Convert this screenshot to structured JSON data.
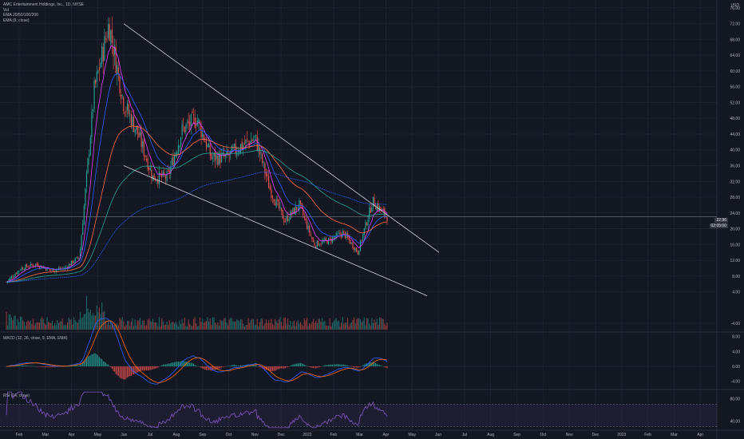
{
  "header": {
    "title": "AMC Entertainment Holdings, Inc., 1D, NYSE",
    "vol_label": "Vol",
    "ema_multi_label": "EMA 20/50/100/200",
    "ema_single_label": "EMA (9, close)",
    "currency": "USD"
  },
  "panes": {
    "macd_label": "MACD (12, 26, close, 9, EMA, EMA)",
    "rsi_label": "RSI (14, close)"
  },
  "price_tags": {
    "last": "22.96",
    "countdown": "02:05:00"
  },
  "chart_data": {
    "type": "candlestick",
    "title": "AMC Entertainment Holdings, Inc., 1D, NYSE",
    "x_ticks": [
      "Feb",
      "Mar",
      "Apr",
      "May",
      "Jun",
      "Jul",
      "Aug",
      "Sep",
      "Oct",
      "Nov",
      "Dec",
      "2022",
      "Feb",
      "Mar",
      "Apr",
      "May",
      "Jun",
      "Jul",
      "Aug",
      "Sep",
      "Oct",
      "Nov",
      "Dec",
      "2023",
      "Feb",
      "Mar",
      "Apr",
      "May"
    ],
    "price_axis": {
      "ticks": [
        76,
        72,
        68,
        64,
        60,
        56,
        52,
        48,
        44,
        40,
        36,
        32,
        28,
        24,
        20,
        16,
        12,
        8,
        4,
        -4
      ],
      "ylim": [
        -6,
        78
      ]
    },
    "macd_axis": {
      "ticks": [
        8,
        4,
        0,
        -4
      ],
      "ylim": [
        -6,
        9
      ]
    },
    "rsi_axis": {
      "ticks": [
        80,
        40
      ],
      "ylim": [
        25,
        95
      ]
    },
    "price_path": [
      {
        "t": "Feb",
        "close": 6.5
      },
      {
        "t": "Feb-mid",
        "close": 10
      },
      {
        "t": "Mar",
        "close": 11
      },
      {
        "t": "Apr",
        "close": 9.5
      },
      {
        "t": "May",
        "close": 10
      },
      {
        "t": "May-end",
        "close": 13
      },
      {
        "t": "Jun",
        "close": 55
      },
      {
        "t": "Jun-peak",
        "close": 72
      },
      {
        "t": "Jun-mid",
        "close": 52
      },
      {
        "t": "Jul",
        "close": 44
      },
      {
        "t": "Jul-end",
        "close": 33
      },
      {
        "t": "Aug",
        "close": 33
      },
      {
        "t": "Aug-mid",
        "close": 45
      },
      {
        "t": "Sep",
        "close": 48
      },
      {
        "t": "Sep-end",
        "close": 38
      },
      {
        "t": "Oct",
        "close": 38
      },
      {
        "t": "Nov",
        "close": 41
      },
      {
        "t": "Nov-mid",
        "close": 43
      },
      {
        "t": "Dec",
        "close": 30
      },
      {
        "t": "Dec-mid",
        "close": 22
      },
      {
        "t": "2022",
        "close": 26
      },
      {
        "t": "Jan-end",
        "close": 16
      },
      {
        "t": "Feb",
        "close": 17
      },
      {
        "t": "Feb-mid",
        "close": 19
      },
      {
        "t": "Mar",
        "close": 14
      },
      {
        "t": "Mar-end",
        "close": 27
      },
      {
        "t": "Apr",
        "close": 23
      }
    ],
    "trendlines": [
      {
        "name": "upper",
        "from": {
          "t": "Jun",
          "price": 72
        },
        "to": {
          "t": "May",
          "price": 14
        }
      },
      {
        "name": "lower",
        "from": {
          "t": "Jun",
          "price": 36
        },
        "to": {
          "t": "May",
          "price": 3
        }
      }
    ],
    "horizontal_line": {
      "price": 23
    },
    "rsi_band": [
      30,
      70
    ]
  },
  "colors": {
    "background": "#131722",
    "up": "#26a69a",
    "down": "#ef5350",
    "grid": "#1e222d",
    "ema9": "#e040fb",
    "ema20": "#2962ff",
    "ema50": "#ff7043",
    "ema100": "#26a69a",
    "ema200": "#2962ff",
    "trendline": "#d1d4dc",
    "macd": "#2962ff",
    "signal": "#ff6d00",
    "rsi": "#7e57c2"
  }
}
